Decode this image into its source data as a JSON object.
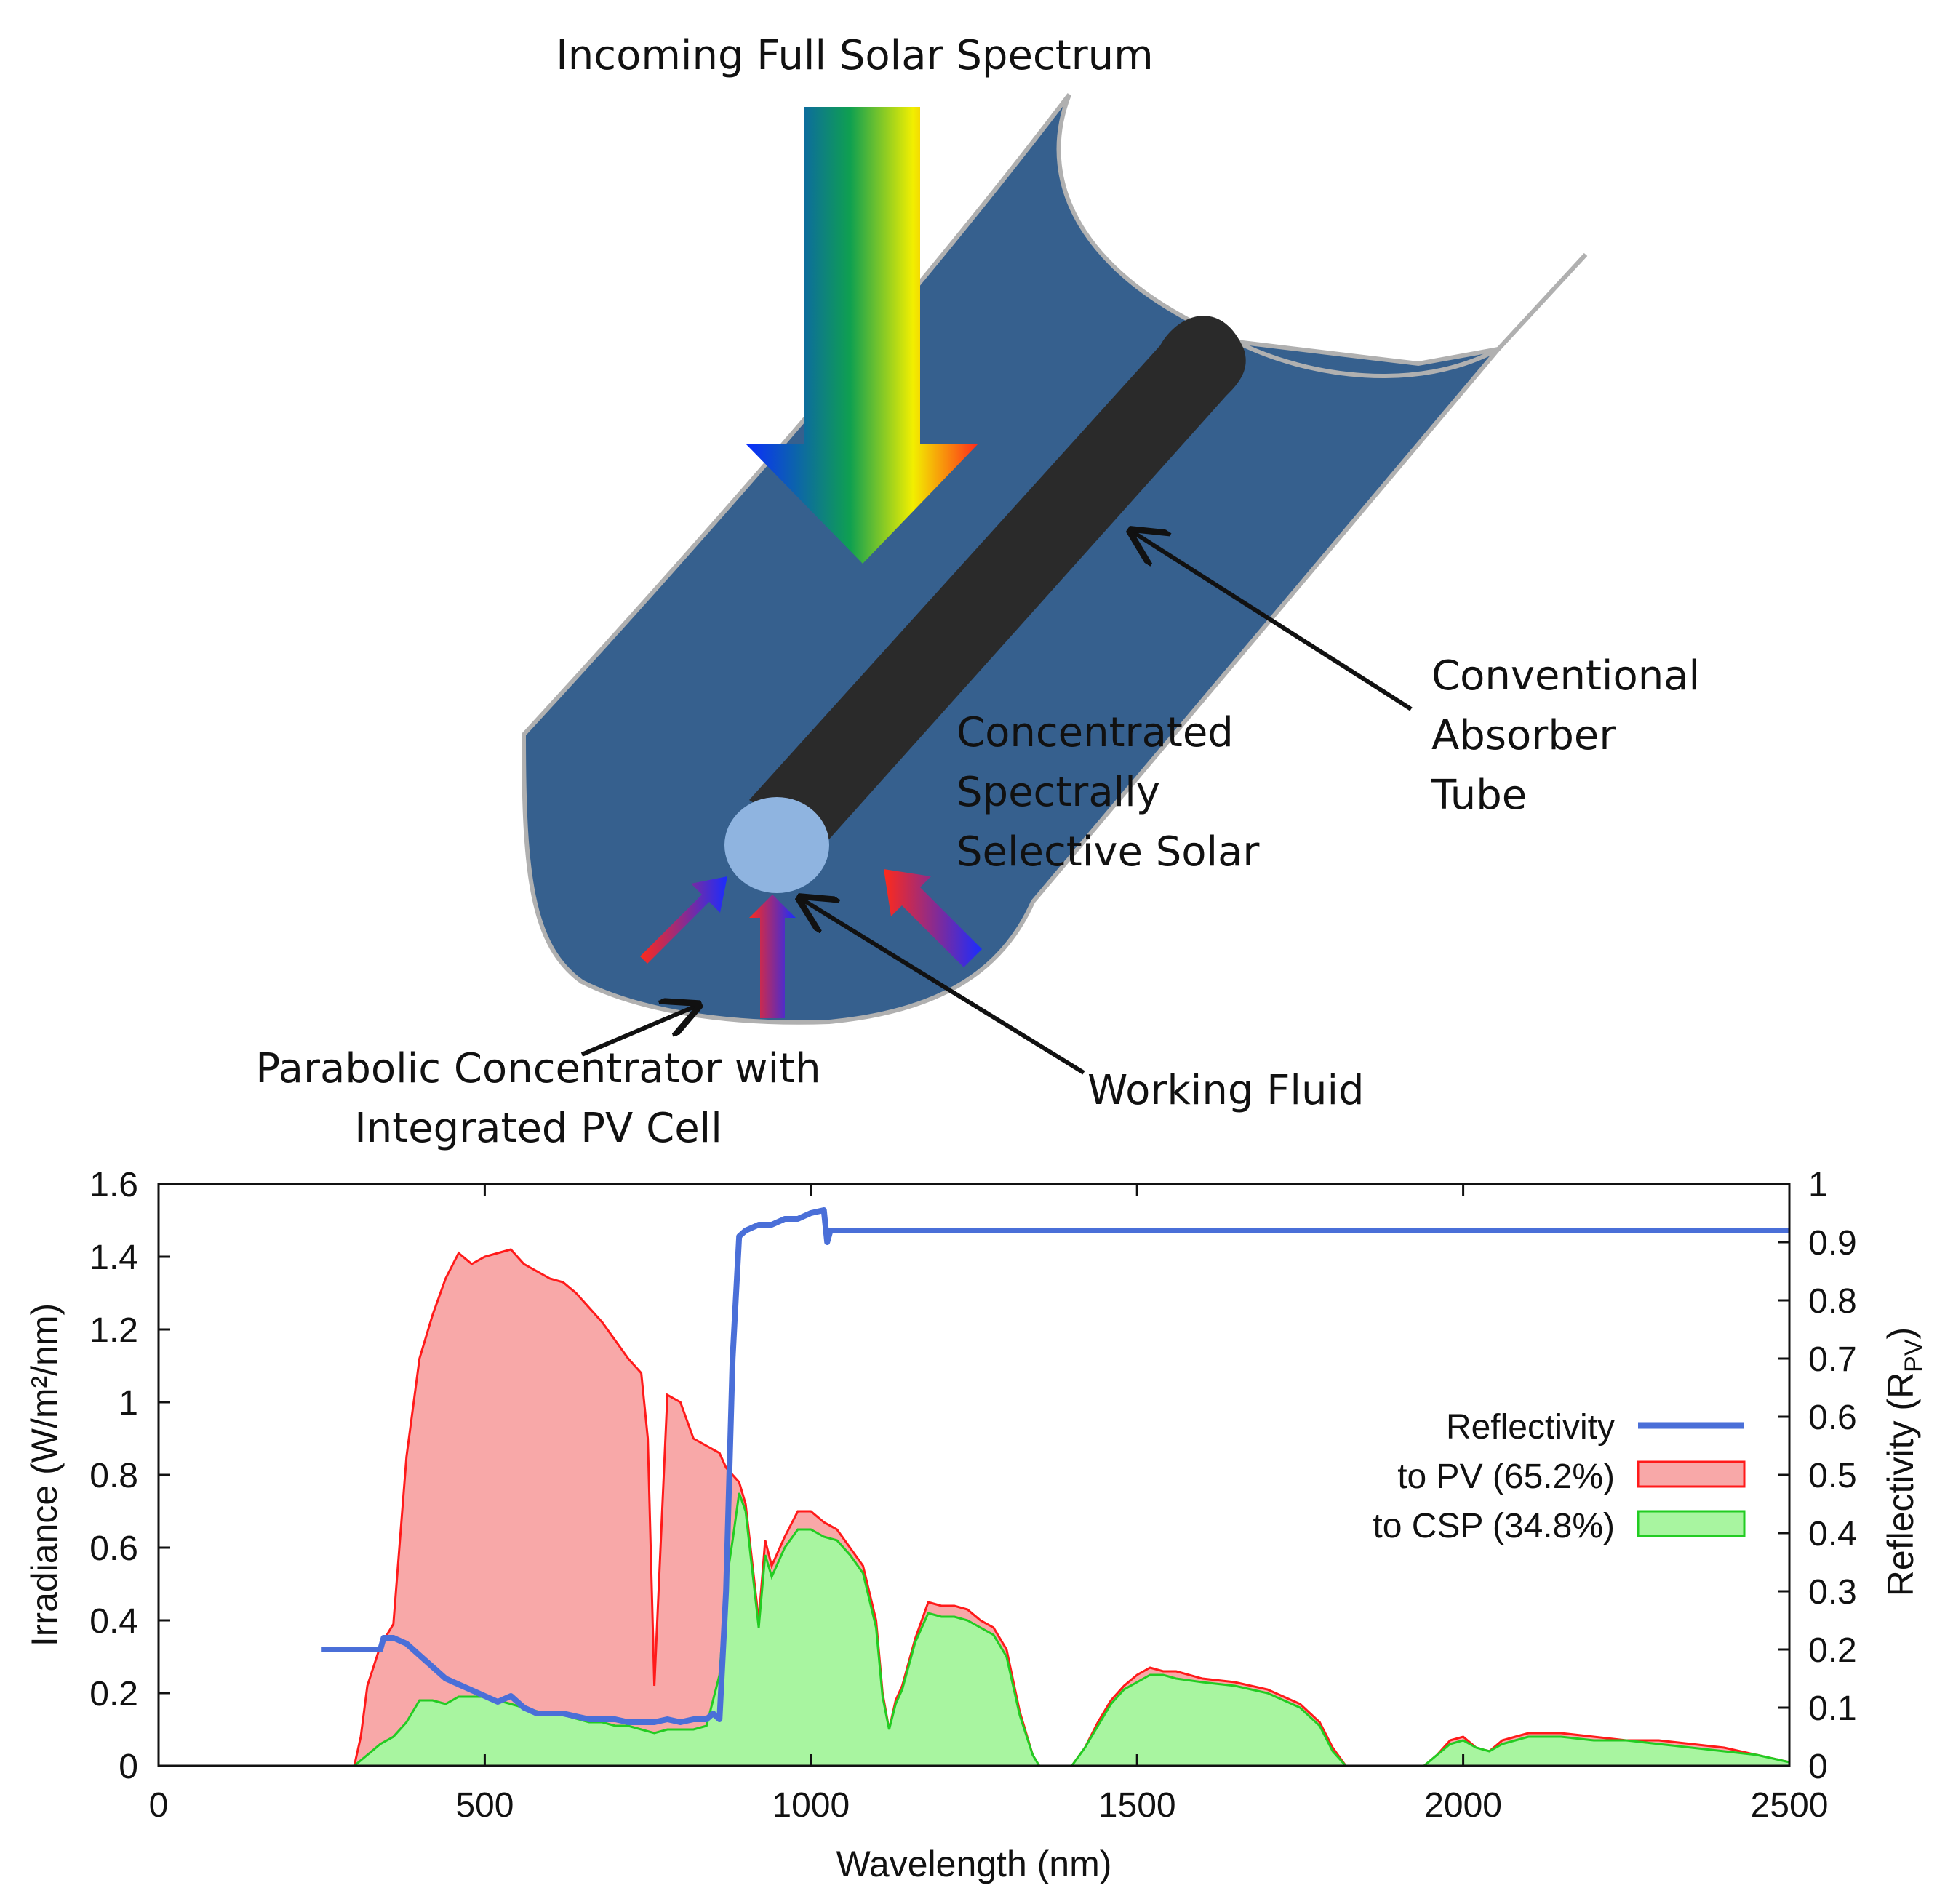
{
  "diagram": {
    "labels": {
      "incoming": "Incoming Full Solar Spectrum",
      "absorber_line1": "Conventional",
      "absorber_line2": "Absorber",
      "absorber_line3": "Tube",
      "selective_line1": "Concentrated",
      "selective_line2": "Spectrally",
      "selective_line3": "Selective Solar",
      "parabolic_line1": "Parabolic Concentrator with",
      "parabolic_line2": "Integrated PV Cell",
      "working_fluid": "Working Fluid"
    },
    "colors": {
      "trough": "#36608e",
      "trough_edge": "#b0b0b0",
      "tube": "#2a2a2a",
      "fluid": "#8fb4e0",
      "spectrum": [
        "#0a2cff",
        "#0fa050",
        "#f2ef00",
        "#ff2a1a"
      ]
    }
  },
  "chart_data": {
    "type": "area",
    "xlabel": "Wavelength (nm)",
    "ylabel": "Irradiance (W/m²/nm)",
    "y2label": "Reflectivity (R",
    "y2label_sub": "PV",
    "y2label_close": ")",
    "xlim": [
      0,
      2500
    ],
    "ylim": [
      0,
      1.6
    ],
    "y2lim": [
      0,
      1
    ],
    "xticks": [
      "0",
      "500",
      "1000",
      "1500",
      "2000",
      "2500"
    ],
    "yticks": [
      "0",
      "0.2",
      "0.4",
      "0.6",
      "0.8",
      "1",
      "1.2",
      "1.4",
      "1.6"
    ],
    "y2ticks": [
      "0",
      "0.1",
      "0.2",
      "0.3",
      "0.4",
      "0.5",
      "0.6",
      "0.7",
      "0.8",
      "0.9",
      "1"
    ],
    "legend_position": "right",
    "legend": {
      "reflectivity": "Reflectivity",
      "pv": "to PV (65.2%)",
      "csp": "to CSP (34.8%)"
    },
    "colors": {
      "reflectivity": "#4a6fd8",
      "pv_fill": "#f8a8a8",
      "pv_line": "#ff1a1a",
      "csp_fill": "#a8f5a0",
      "csp_line": "#22cc22",
      "reflectivity_overlap": "#8055a8"
    },
    "series": [
      {
        "name": "to PV (65.2%)",
        "x": [
          300,
          310,
          320,
          340,
          360,
          380,
          400,
          420,
          440,
          460,
          480,
          500,
          520,
          540,
          560,
          580,
          600,
          620,
          640,
          660,
          680,
          700,
          720,
          740,
          750,
          760,
          780,
          800,
          820,
          840,
          860,
          870,
          880,
          890,
          900,
          920,
          930,
          940,
          960,
          980,
          1000,
          1020,
          1040,
          1060,
          1080,
          1100,
          1110,
          1120,
          1130,
          1140,
          1160,
          1180,
          1200,
          1220,
          1240,
          1260,
          1280,
          1300,
          1320,
          1340,
          1350,
          1400,
          1420,
          1440,
          1460,
          1480,
          1500,
          1520,
          1540,
          1560,
          1600,
          1650,
          1700,
          1750,
          1780,
          1800,
          1820,
          1900,
          1940,
          1960,
          1980,
          2000,
          2020,
          2040,
          2060,
          2080,
          2100,
          2150,
          2200,
          2250,
          2300,
          2350,
          2400,
          2450,
          2500
        ],
        "values": [
          0.0,
          0.08,
          0.22,
          0.33,
          0.39,
          0.85,
          1.12,
          1.24,
          1.34,
          1.41,
          1.38,
          1.4,
          1.41,
          1.42,
          1.38,
          1.36,
          1.34,
          1.33,
          1.3,
          1.26,
          1.22,
          1.17,
          1.12,
          1.08,
          0.9,
          0.22,
          1.02,
          1.0,
          0.9,
          0.88,
          0.86,
          0.82,
          0.8,
          0.78,
          0.72,
          0.4,
          0.62,
          0.55,
          0.63,
          0.7,
          0.7,
          0.67,
          0.65,
          0.6,
          0.55,
          0.4,
          0.2,
          0.1,
          0.18,
          0.22,
          0.35,
          0.45,
          0.44,
          0.44,
          0.43,
          0.4,
          0.38,
          0.32,
          0.15,
          0.03,
          0.0,
          0.0,
          0.05,
          0.12,
          0.18,
          0.22,
          0.25,
          0.27,
          0.26,
          0.26,
          0.24,
          0.23,
          0.21,
          0.17,
          0.12,
          0.05,
          0.0,
          0.0,
          0.0,
          0.03,
          0.07,
          0.08,
          0.05,
          0.04,
          0.07,
          0.08,
          0.09,
          0.09,
          0.08,
          0.07,
          0.07,
          0.06,
          0.05,
          0.03,
          0.01
        ]
      },
      {
        "name": "to CSP (34.8%)",
        "x": [
          300,
          320,
          340,
          360,
          380,
          400,
          420,
          440,
          460,
          480,
          500,
          520,
          540,
          560,
          580,
          600,
          620,
          640,
          660,
          680,
          700,
          720,
          740,
          760,
          780,
          800,
          820,
          840,
          860,
          870,
          880,
          890,
          900,
          920,
          930,
          940,
          960,
          980,
          1000,
          1020,
          1040,
          1060,
          1080,
          1100,
          1110,
          1120,
          1130,
          1140,
          1160,
          1180,
          1200,
          1220,
          1240,
          1260,
          1280,
          1300,
          1320,
          1340,
          1350,
          1400,
          1420,
          1440,
          1460,
          1480,
          1500,
          1520,
          1540,
          1560,
          1600,
          1650,
          1700,
          1750,
          1780,
          1800,
          1820,
          1900,
          1940,
          1960,
          1980,
          2000,
          2020,
          2040,
          2060,
          2080,
          2100,
          2150,
          2200,
          2250,
          2300,
          2350,
          2400,
          2450,
          2500
        ],
        "values": [
          0.0,
          0.03,
          0.06,
          0.08,
          0.12,
          0.18,
          0.18,
          0.17,
          0.19,
          0.19,
          0.19,
          0.18,
          0.17,
          0.16,
          0.15,
          0.14,
          0.14,
          0.13,
          0.12,
          0.12,
          0.11,
          0.11,
          0.1,
          0.09,
          0.1,
          0.1,
          0.1,
          0.11,
          0.25,
          0.5,
          0.62,
          0.75,
          0.7,
          0.38,
          0.58,
          0.52,
          0.6,
          0.65,
          0.65,
          0.63,
          0.62,
          0.58,
          0.53,
          0.38,
          0.19,
          0.1,
          0.17,
          0.21,
          0.34,
          0.42,
          0.41,
          0.41,
          0.4,
          0.38,
          0.36,
          0.3,
          0.14,
          0.03,
          0.0,
          0.0,
          0.05,
          0.11,
          0.17,
          0.21,
          0.23,
          0.25,
          0.25,
          0.24,
          0.23,
          0.22,
          0.2,
          0.16,
          0.11,
          0.04,
          0.0,
          0.0,
          0.0,
          0.03,
          0.06,
          0.07,
          0.05,
          0.04,
          0.06,
          0.07,
          0.08,
          0.08,
          0.07,
          0.07,
          0.06,
          0.05,
          0.04,
          0.03,
          0.01
        ]
      },
      {
        "name": "Reflectivity",
        "axis": "right",
        "x": [
          250,
          340,
          345,
          360,
          380,
          400,
          420,
          440,
          460,
          480,
          500,
          520,
          540,
          560,
          580,
          600,
          620,
          640,
          660,
          680,
          700,
          720,
          740,
          760,
          780,
          800,
          820,
          840,
          850,
          860,
          870,
          880,
          890,
          900,
          920,
          940,
          960,
          980,
          1000,
          1020,
          1025,
          1030,
          1040,
          1500,
          2000,
          2500
        ],
        "values": [
          0.2,
          0.2,
          0.22,
          0.22,
          0.21,
          0.19,
          0.17,
          0.15,
          0.14,
          0.13,
          0.12,
          0.11,
          0.12,
          0.1,
          0.09,
          0.09,
          0.09,
          0.085,
          0.08,
          0.08,
          0.08,
          0.075,
          0.075,
          0.075,
          0.08,
          0.075,
          0.08,
          0.08,
          0.09,
          0.08,
          0.3,
          0.7,
          0.91,
          0.92,
          0.93,
          0.93,
          0.94,
          0.94,
          0.95,
          0.955,
          0.9,
          0.92,
          0.92,
          0.92,
          0.92,
          0.92
        ]
      }
    ]
  }
}
